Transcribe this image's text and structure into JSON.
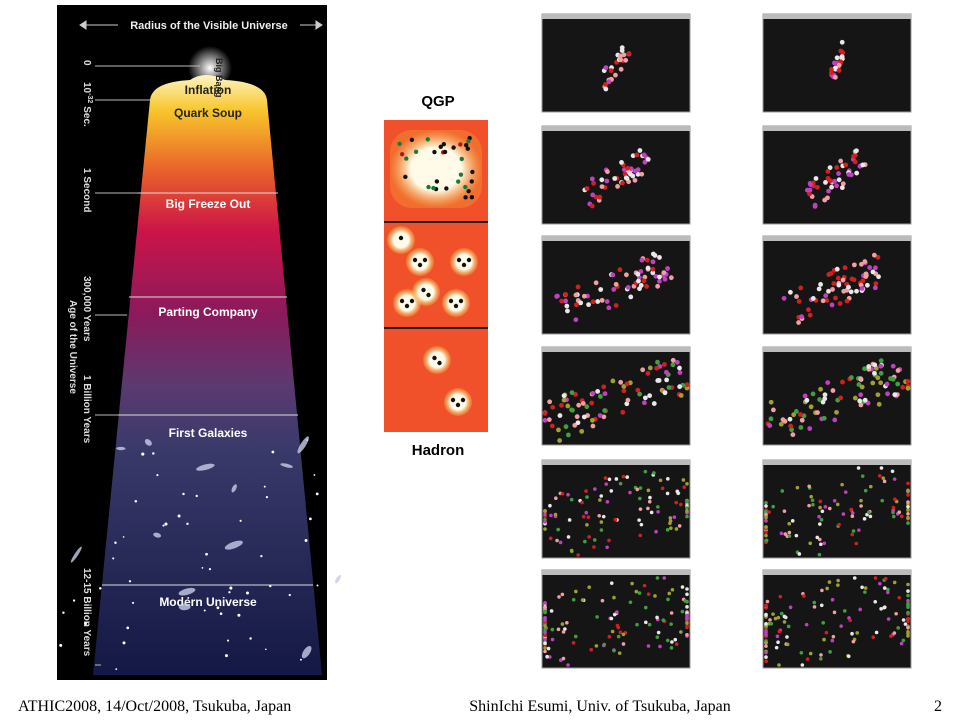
{
  "universe": {
    "header": "Radius of the Visible Universe",
    "big_bang": "Big Bang",
    "axis_title": "Age of the Universe",
    "eras": [
      "Inflation",
      "Quark Soup",
      "Big Freeze Out",
      "Parting Company",
      "First Galaxies",
      "Modern Universe"
    ],
    "times": [
      "0",
      "1 Second",
      "300,000 Years",
      "1 Billion Years",
      "12-15 Billion Years"
    ],
    "early_time": {
      "base": "10",
      "exponent": "-32",
      "unit": "Sec."
    }
  },
  "qgp_panel": {
    "top": "QGP",
    "bottom": "Hadron"
  },
  "footer": {
    "left": "ATHIC2008, 14/Oct/2008, Tsukuba, Japan",
    "center": "ShinIchi Esumi, Univ. of Tsukuba, Japan",
    "page": "2"
  }
}
